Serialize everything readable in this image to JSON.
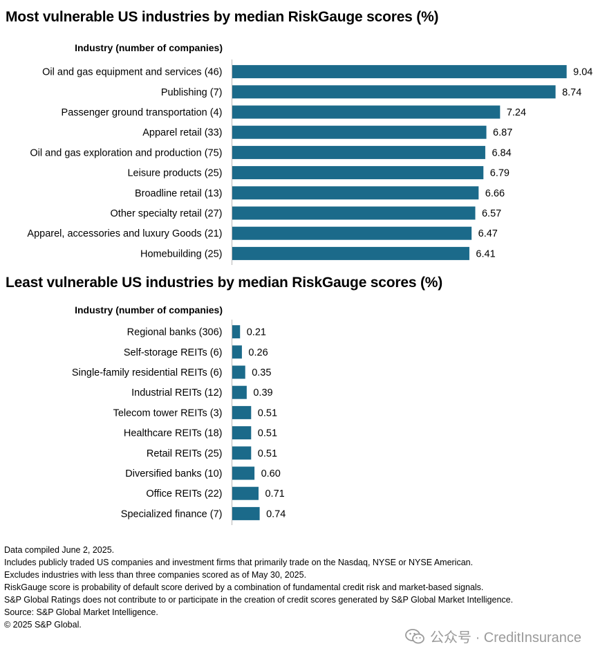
{
  "colors": {
    "bar": "#1b6a8a",
    "axis": "#b5b5b5"
  },
  "chart_data": [
    {
      "type": "bar",
      "orientation": "horizontal",
      "title": "Most vulnerable US industries by median RiskGauge scores (%)",
      "category_header": "Industry (number of companies)",
      "categories": [
        "Oil and gas equipment and services (46)",
        "Publishing (7)",
        "Passenger ground transportation (4)",
        "Apparel retail (33)",
        "Oil and gas exploration and production (75)",
        "Leisure products (25)",
        "Broadline retail (13)",
        "Other specialty retail (27)",
        "Apparel, accessories and luxury Goods (21)",
        "Homebuilding (25)"
      ],
      "values": [
        9.04,
        8.74,
        7.24,
        6.87,
        6.84,
        6.79,
        6.66,
        6.57,
        6.47,
        6.41
      ],
      "value_labels": [
        "9.04",
        "8.74",
        "7.24",
        "6.87",
        "6.84",
        "6.79",
        "6.66",
        "6.57",
        "6.47",
        "6.41"
      ],
      "xlim": [
        0,
        10
      ],
      "grid": false
    },
    {
      "type": "bar",
      "orientation": "horizontal",
      "title": "Least vulnerable US industries by median RiskGauge scores (%)",
      "category_header": "Industry (number of companies)",
      "categories": [
        "Regional banks (306)",
        "Self-storage REITs (6)",
        "Single-family residential REITs (6)",
        "Industrial REITs (12)",
        "Telecom tower REITs (3)",
        "Healthcare REITs (18)",
        "Retail REITs (25)",
        "Diversified banks (10)",
        "Office REITs (22)",
        "Specialized finance (7)"
      ],
      "values": [
        0.21,
        0.26,
        0.35,
        0.39,
        0.51,
        0.51,
        0.51,
        0.6,
        0.71,
        0.74
      ],
      "value_labels": [
        "0.21",
        "0.26",
        "0.35",
        "0.39",
        "0.51",
        "0.51",
        "0.51",
        "0.60",
        "0.71",
        "0.74"
      ],
      "xlim": [
        0,
        10
      ],
      "grid": false
    }
  ],
  "notes": [
    "Data compiled June 2, 2025.",
    "Includes publicly traded US companies and investment firms that primarily trade on the Nasdaq, NYSE or NYSE American.",
    "Excludes industries with less than three companies scored as of May 30, 2025.",
    "RiskGauge score is probability of default score derived by a combination of fundamental credit risk and market-based signals.",
    "S&P Global Ratings does not contribute to or participate in the creation of credit scores generated by S&P Global Market Intelligence.",
    "Source: S&P Global Market Intelligence.",
    "© 2025 S&P Global."
  ],
  "watermark": {
    "text": "公众号 · CreditInsurance",
    "icon": "wechat-icon"
  }
}
